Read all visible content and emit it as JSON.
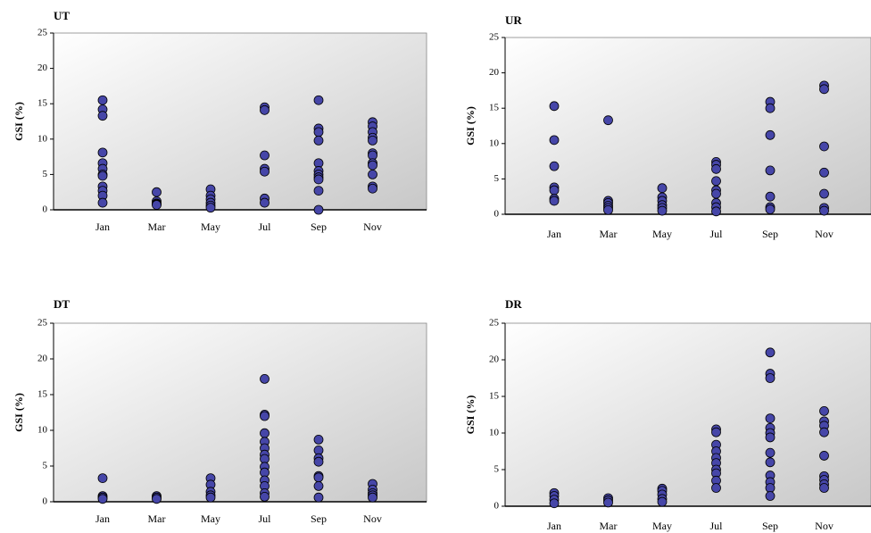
{
  "chart_data": [
    {
      "type": "scatter",
      "title": "UT",
      "y_label": "GSI (%)",
      "categories": [
        "Jan",
        "Mar",
        "May",
        "Jul",
        "Sep",
        "Nov"
      ],
      "ylim": [
        0,
        25
      ],
      "yticks": [
        0,
        5,
        10,
        15,
        20,
        25
      ],
      "color": "#4646a8",
      "values": [
        [
          15.5,
          14.2,
          13.3,
          8.1,
          6.6,
          5.8,
          5.0,
          4.8,
          3.3,
          2.7,
          2.0,
          1.0
        ],
        [
          2.5,
          1.2,
          0.9,
          0.8,
          0.7
        ],
        [
          2.9,
          2.0,
          1.5,
          1.0,
          0.6,
          0.3
        ],
        [
          14.5,
          14.1,
          7.7,
          5.8,
          5.4,
          1.6,
          1.0
        ],
        [
          15.5,
          11.5,
          11.0,
          9.8,
          6.6,
          5.5,
          5.0,
          4.6,
          4.3,
          2.7,
          0
        ],
        [
          12.4,
          11.8,
          11.0,
          10.2,
          9.8,
          8.0,
          7.7,
          6.6,
          6.3,
          5.0,
          3.3,
          3.0
        ]
      ]
    },
    {
      "type": "scatter",
      "title": "UR",
      "y_label": "GSI (%)",
      "categories": [
        "Jan",
        "Mar",
        "May",
        "Jul",
        "Sep",
        "Nov"
      ],
      "ylim": [
        0,
        25
      ],
      "yticks": [
        0,
        5,
        10,
        15,
        20,
        25
      ],
      "color": "#4646a8",
      "values": [
        [
          15.3,
          10.5,
          6.8,
          3.8,
          3.4,
          2.2,
          1.9
        ],
        [
          13.3,
          1.9,
          1.6,
          1.2,
          0.9,
          0.6
        ],
        [
          3.7,
          2.4,
          1.9,
          1.3,
          0.9,
          0.5
        ],
        [
          7.4,
          7.0,
          6.4,
          4.7,
          3.4,
          2.9,
          1.6,
          1.0,
          0.4
        ],
        [
          15.9,
          15.0,
          11.2,
          6.2,
          2.5,
          1.0,
          0.7
        ],
        [
          18.2,
          17.7,
          9.6,
          5.9,
          2.9,
          0.9,
          0.5
        ]
      ]
    },
    {
      "type": "scatter",
      "title": "DT",
      "y_label": "GSI (%)",
      "categories": [
        "Jan",
        "Mar",
        "May",
        "Jul",
        "Sep",
        "Nov"
      ],
      "ylim": [
        0,
        25
      ],
      "yticks": [
        0,
        5,
        10,
        15,
        20,
        25
      ],
      "color": "#4646a8",
      "values": [
        [
          3.3,
          0.8,
          0.6,
          0.4
        ],
        [
          0.8,
          0.6,
          0.4
        ],
        [
          3.3,
          2.4,
          1.4,
          0.9,
          0.6
        ],
        [
          17.2,
          12.2,
          12.0,
          9.6,
          8.4,
          7.5,
          6.6,
          6.0,
          4.9,
          4.1,
          3.0,
          2.2,
          1.2,
          0.7
        ],
        [
          8.7,
          7.2,
          6.1,
          5.6,
          3.6,
          3.4,
          2.2,
          0.6
        ],
        [
          2.5,
          1.7,
          1.2,
          0.9,
          0.6
        ]
      ]
    },
    {
      "type": "scatter",
      "title": "DR",
      "y_label": "GSI (%)",
      "categories": [
        "Jan",
        "Mar",
        "May",
        "Jul",
        "Sep",
        "Nov"
      ],
      "ylim": [
        0,
        25
      ],
      "yticks": [
        0,
        5,
        10,
        15,
        20,
        25
      ],
      "color": "#4646a8",
      "values": [
        [
          1.8,
          1.4,
          0.9,
          0.4
        ],
        [
          1.1,
          0.8,
          0.5
        ],
        [
          2.4,
          2.1,
          1.6,
          1.0,
          0.6
        ],
        [
          10.5,
          10.1,
          8.4,
          7.5,
          6.6,
          5.9,
          5.0,
          4.5,
          3.5,
          2.5
        ],
        [
          21.0,
          18.1,
          17.5,
          12.0,
          10.7,
          10.0,
          9.4,
          7.3,
          6.0,
          4.2,
          3.3,
          2.5,
          1.4
        ],
        [
          13.0,
          11.6,
          11.0,
          10.1,
          6.9,
          4.1,
          3.6,
          3.0,
          2.5
        ]
      ]
    }
  ]
}
